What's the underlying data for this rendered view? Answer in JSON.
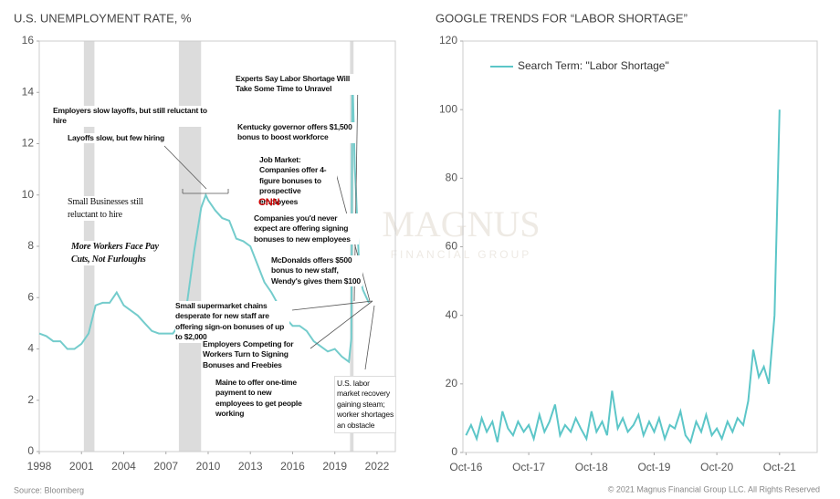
{
  "chart_data": [
    {
      "type": "line",
      "title": "U.S. UNEMPLOYMENT RATE, %",
      "x": [
        1998,
        1998.5,
        1999,
        1999.5,
        2000,
        2000.5,
        2001,
        2001.5,
        2002,
        2002.5,
        2003,
        2003.5,
        2004,
        2004.5,
        2005,
        2005.5,
        2006,
        2006.5,
        2007,
        2007.5,
        2008,
        2008.5,
        2009,
        2009.5,
        2009.83,
        2010,
        2010.5,
        2011,
        2011.5,
        2012,
        2012.5,
        2013,
        2013.5,
        2014,
        2014.5,
        2015,
        2015.5,
        2016,
        2016.5,
        2017,
        2017.5,
        2018,
        2018.5,
        2019,
        2019.5,
        2020,
        2020.17,
        2020.25,
        2020.42,
        2020.5,
        2020.75,
        2021,
        2021.25,
        2021.42
      ],
      "series": [
        {
          "color": "#74cccc",
          "values": [
            4.6,
            4.5,
            4.3,
            4.3,
            4.0,
            4.0,
            4.2,
            4.6,
            5.7,
            5.8,
            5.8,
            6.2,
            5.7,
            5.5,
            5.3,
            5.0,
            4.7,
            4.6,
            4.6,
            4.6,
            5.0,
            5.8,
            7.8,
            9.5,
            10.0,
            9.8,
            9.4,
            9.1,
            9.0,
            8.3,
            8.2,
            8.0,
            7.3,
            6.6,
            6.2,
            5.7,
            5.2,
            4.9,
            4.9,
            4.7,
            4.3,
            4.1,
            3.9,
            4.0,
            3.7,
            3.5,
            4.4,
            14.7,
            11.1,
            10.2,
            6.9,
            6.3,
            6.0,
            5.8
          ]
        }
      ],
      "xlim": [
        1998,
        2023.3
      ],
      "xticks": [
        1998,
        2001,
        2004,
        2007,
        2010,
        2013,
        2016,
        2019,
        2022
      ],
      "ylim": [
        0,
        16
      ],
      "yticks": [
        0,
        2,
        4,
        6,
        8,
        10,
        12,
        14,
        16
      ],
      "shaded_ranges": [
        [
          2001.17,
          2001.92
        ],
        [
          2007.92,
          2009.5
        ],
        [
          2020.08,
          2020.33
        ]
      ],
      "shade_color": "#dcdcdc",
      "annotations": [
        "Employers slow layoffs, but still reluctant to hire",
        "Layoffs slow, but few hiring",
        "Small Businesses still reluctant to hire",
        "More Workers Face Pay Cuts, Not Furloughs",
        "Experts Say Labor Shortage Will Take Some Time to Unravel",
        "Kentucky governor offers $1,500 bonus to boost workforce",
        "Job Market: Companies offer 4-figure bonuses to prospective employees",
        "Companies you'd never expect are offering signing bonuses to new employees",
        "McDonalds offers $500 bonus to new staff, Wendy's gives them $100",
        "Small supermarket chains desperate for new staff are offering sign-on bonuses of up to $2,000",
        "Employers Competing for Workers Turn to Signing Bonuses and Freebies",
        "Maine to offer one-time payment to new employees to get people working",
        "U.S. labor market recovery gaining steam; worker shortages an obstacle",
        "CNN"
      ],
      "source": "Source: Bloomberg"
    },
    {
      "type": "line",
      "title": "GOOGLE TRENDS FOR “LABOR SHORTAGE”",
      "x": [
        2016.75,
        2016.83,
        2016.92,
        2017,
        2017.08,
        2017.17,
        2017.25,
        2017.33,
        2017.42,
        2017.5,
        2017.58,
        2017.67,
        2017.75,
        2017.83,
        2017.92,
        2018,
        2018.08,
        2018.17,
        2018.25,
        2018.33,
        2018.42,
        2018.5,
        2018.58,
        2018.67,
        2018.75,
        2018.83,
        2018.92,
        2019,
        2019.08,
        2019.17,
        2019.25,
        2019.33,
        2019.42,
        2019.5,
        2019.58,
        2019.67,
        2019.75,
        2019.83,
        2019.92,
        2020,
        2020.08,
        2020.17,
        2020.25,
        2020.33,
        2020.42,
        2020.5,
        2020.58,
        2020.67,
        2020.75,
        2020.83,
        2020.92,
        2021,
        2021.08,
        2021.17,
        2021.25,
        2021.33,
        2021.42,
        2021.5,
        2021.58,
        2021.67,
        2021.75
      ],
      "series": [
        {
          "name": "Search Term: \"Labor Shortage\"",
          "color": "#5cc6c8",
          "values": [
            5,
            8,
            4,
            10,
            6,
            9,
            3,
            12,
            7,
            5,
            9,
            6,
            8,
            4,
            11,
            6,
            9,
            14,
            5,
            8,
            6,
            10,
            7,
            4,
            12,
            6,
            9,
            5,
            18,
            7,
            10,
            6,
            8,
            11,
            5,
            9,
            6,
            10,
            4,
            8,
            7,
            12,
            5,
            3,
            9,
            6,
            11,
            5,
            7,
            4,
            9,
            6,
            10,
            8,
            15,
            30,
            22,
            25,
            20,
            40,
            100
          ]
        }
      ],
      "xlim": [
        2016.7,
        2022.35
      ],
      "xticks": [
        {
          "value": 2016.75,
          "label": "Oct-16"
        },
        {
          "value": 2017.75,
          "label": "Oct-17"
        },
        {
          "value": 2018.75,
          "label": "Oct-18"
        },
        {
          "value": 2019.75,
          "label": "Oct-19"
        },
        {
          "value": 2020.75,
          "label": "Oct-20"
        },
        {
          "value": 2021.75,
          "label": "Oct-21"
        }
      ],
      "ylim": [
        0,
        120
      ],
      "yticks": [
        0,
        20,
        40,
        60,
        80,
        100,
        120
      ],
      "legend": "upper left"
    }
  ],
  "watermark": [
    "MAGNUS",
    "FINANCIAL GROUP"
  ],
  "footer": "© 2021 Magnus Financial Group LLC. All Rights Reserved"
}
